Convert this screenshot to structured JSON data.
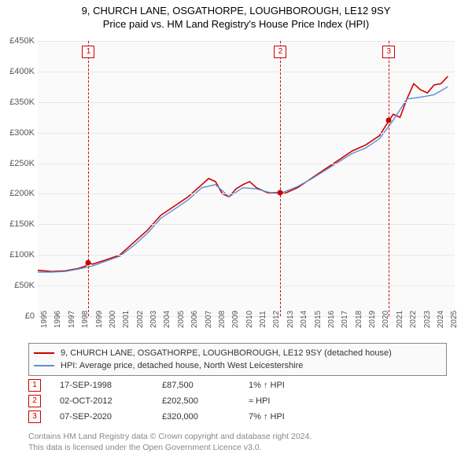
{
  "title": "9, CHURCH LANE, OSGATHORPE, LOUGHBOROUGH, LE12 9SY",
  "subtitle": "Price paid vs. HM Land Registry's House Price Index (HPI)",
  "chart": {
    "type": "line",
    "background_color": "#fafafa",
    "grid_color": "#e8e8e8",
    "x_years": [
      1995,
      1996,
      1997,
      1998,
      1999,
      2000,
      2001,
      2002,
      2003,
      2004,
      2005,
      2006,
      2007,
      2008,
      2009,
      2010,
      2011,
      2012,
      2013,
      2014,
      2015,
      2016,
      2017,
      2018,
      2019,
      2020,
      2021,
      2022,
      2023,
      2024,
      2025
    ],
    "xlim": [
      1995,
      2025.5
    ],
    "ylim": [
      0,
      450
    ],
    "ytick_step": 50,
    "y_prefix": "£",
    "y_suffix": "K",
    "series": [
      {
        "name": "property",
        "color": "#cc0000",
        "width": 1.6,
        "points": [
          [
            1995,
            75
          ],
          [
            1996,
            73
          ],
          [
            1997,
            74
          ],
          [
            1998,
            78
          ],
          [
            1998.5,
            82
          ],
          [
            1998.7,
            87.5
          ],
          [
            1999,
            85
          ],
          [
            2000,
            92
          ],
          [
            2001,
            100
          ],
          [
            2002,
            120
          ],
          [
            2003,
            140
          ],
          [
            2004,
            165
          ],
          [
            2005,
            180
          ],
          [
            2006,
            195
          ],
          [
            2007,
            215
          ],
          [
            2007.5,
            225
          ],
          [
            2008,
            220
          ],
          [
            2008.5,
            200
          ],
          [
            2009,
            195
          ],
          [
            2009.5,
            208
          ],
          [
            2010,
            215
          ],
          [
            2010.5,
            220
          ],
          [
            2011,
            210
          ],
          [
            2011.5,
            205
          ],
          [
            2012,
            200
          ],
          [
            2012.75,
            202.5
          ],
          [
            2013,
            200
          ],
          [
            2014,
            210
          ],
          [
            2015,
            225
          ],
          [
            2016,
            240
          ],
          [
            2017,
            255
          ],
          [
            2018,
            270
          ],
          [
            2019,
            280
          ],
          [
            2020,
            295
          ],
          [
            2020.7,
            320
          ],
          [
            2021,
            330
          ],
          [
            2021.5,
            325
          ],
          [
            2022,
            355
          ],
          [
            2022.5,
            380
          ],
          [
            2023,
            370
          ],
          [
            2023.5,
            365
          ],
          [
            2024,
            378
          ],
          [
            2024.5,
            380
          ],
          [
            2025,
            392
          ]
        ]
      },
      {
        "name": "hpi",
        "color": "#5b8fd6",
        "width": 1.4,
        "points": [
          [
            1995,
            72
          ],
          [
            1996,
            72
          ],
          [
            1997,
            73
          ],
          [
            1998,
            77
          ],
          [
            1999,
            82
          ],
          [
            2000,
            90
          ],
          [
            2001,
            98
          ],
          [
            2002,
            115
          ],
          [
            2003,
            135
          ],
          [
            2004,
            160
          ],
          [
            2005,
            175
          ],
          [
            2006,
            190
          ],
          [
            2007,
            210
          ],
          [
            2008,
            215
          ],
          [
            2009,
            195
          ],
          [
            2010,
            210
          ],
          [
            2011,
            208
          ],
          [
            2012,
            202
          ],
          [
            2013,
            203
          ],
          [
            2014,
            212
          ],
          [
            2015,
            224
          ],
          [
            2016,
            238
          ],
          [
            2017,
            252
          ],
          [
            2018,
            266
          ],
          [
            2019,
            275
          ],
          [
            2020,
            290
          ],
          [
            2021,
            320
          ],
          [
            2022,
            355
          ],
          [
            2023,
            358
          ],
          [
            2024,
            362
          ],
          [
            2025,
            375
          ]
        ]
      }
    ],
    "sale_markers": [
      {
        "n": "1",
        "x": 1998.71,
        "y": 87.5
      },
      {
        "n": "2",
        "x": 2012.75,
        "y": 202.5
      },
      {
        "n": "3",
        "x": 2020.68,
        "y": 320
      }
    ]
  },
  "legend": [
    {
      "color": "#cc0000",
      "label": "9, CHURCH LANE, OSGATHORPE, LOUGHBOROUGH, LE12 9SY (detached house)"
    },
    {
      "color": "#5b8fd6",
      "label": "HPI: Average price, detached house, North West Leicestershire"
    }
  ],
  "sales": [
    {
      "n": "1",
      "date": "17-SEP-1998",
      "price": "£87,500",
      "hpi": "1% ↑ HPI"
    },
    {
      "n": "2",
      "date": "02-OCT-2012",
      "price": "£202,500",
      "hpi": "≈ HPI"
    },
    {
      "n": "3",
      "date": "07-SEP-2020",
      "price": "£320,000",
      "hpi": "7% ↑ HPI"
    }
  ],
  "footer_line1": "Contains HM Land Registry data © Crown copyright and database right 2024.",
  "footer_line2": "This data is licensed under the Open Government Licence v3.0."
}
